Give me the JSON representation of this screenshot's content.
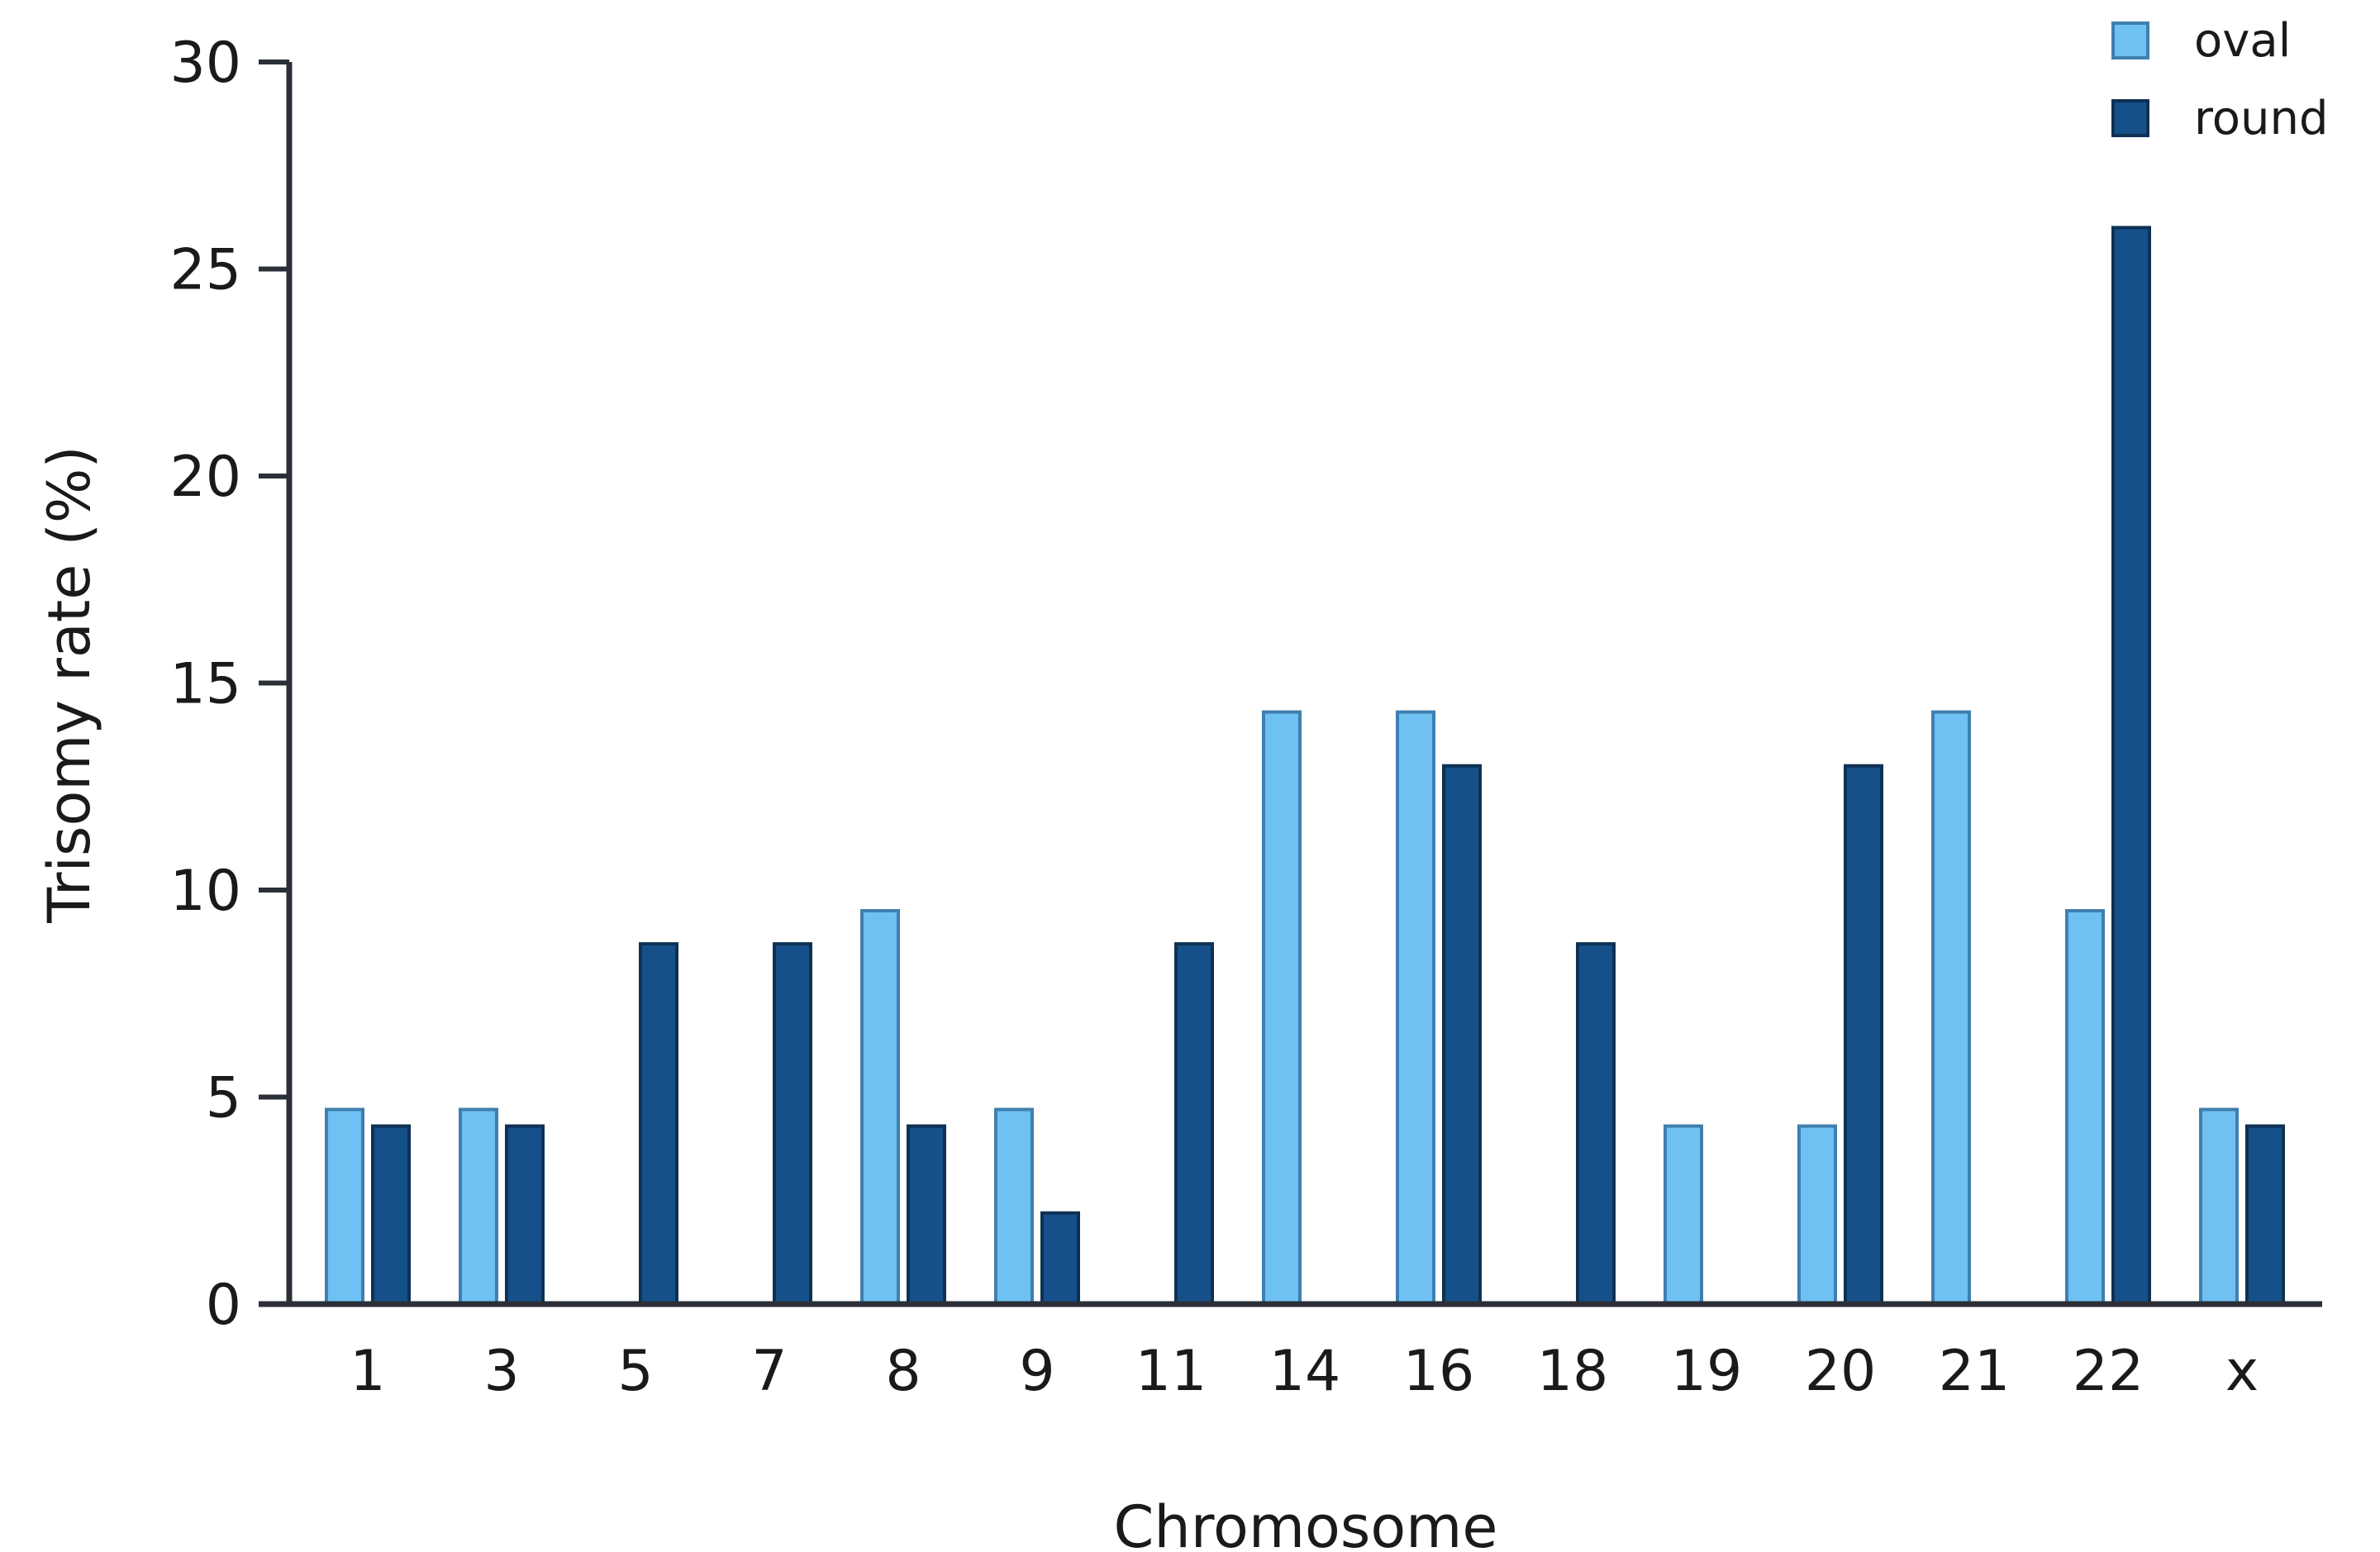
{
  "chart_data": {
    "type": "bar",
    "categories": [
      "1",
      "3",
      "5",
      "7",
      "8",
      "9",
      "11",
      "14",
      "16",
      "18",
      "19",
      "20",
      "21",
      "22",
      "x"
    ],
    "series": [
      {
        "name": "oval",
        "color": "#6ec1f2",
        "values": [
          4.7,
          4.7,
          0,
          0,
          9.5,
          4.7,
          0,
          14.3,
          14.3,
          0,
          4.3,
          4.3,
          14.3,
          9.5,
          4.7
        ]
      },
      {
        "name": "round",
        "color": "#16508a",
        "values": [
          4.3,
          4.3,
          8.7,
          8.7,
          4.3,
          2.2,
          8.7,
          0,
          13.0,
          8.7,
          0,
          13.0,
          0,
          26.0,
          4.3
        ]
      }
    ],
    "xlabel": "Chromosome",
    "ylabel": "Trisomy rate (%)",
    "ylim": [
      0,
      30
    ],
    "yticks": [
      "0",
      "5",
      "10",
      "15",
      "20",
      "25",
      "30"
    ],
    "grid": false,
    "legend": "top-right"
  }
}
